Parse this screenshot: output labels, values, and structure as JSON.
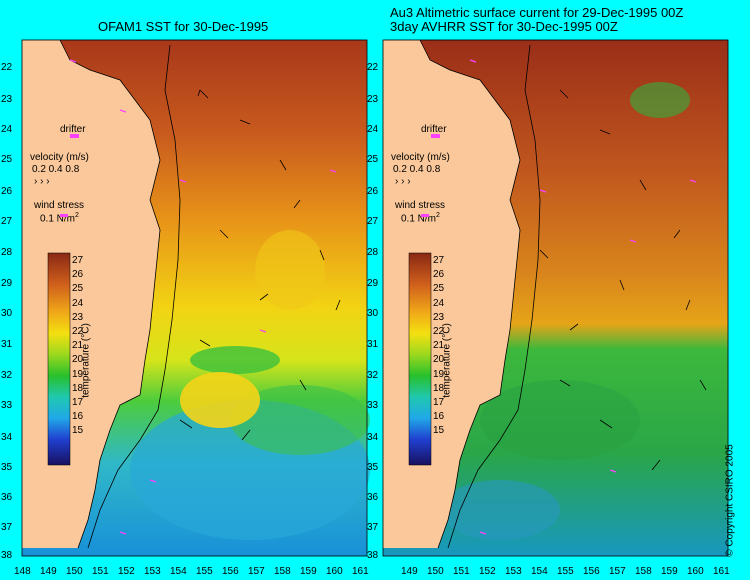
{
  "left_panel": {
    "title": "OFAM1 SST for 30-Dec-1995",
    "lat_ticks": [
      "22",
      "23",
      "24",
      "25",
      "26",
      "27",
      "28",
      "29",
      "30",
      "31",
      "32",
      "33",
      "34",
      "35",
      "36",
      "37",
      "38"
    ],
    "lon_ticks": [
      "148",
      "149",
      "150",
      "151",
      "152",
      "153",
      "154",
      "155",
      "156",
      "157",
      "158",
      "159",
      "160",
      "161"
    ]
  },
  "right_panel": {
    "title_line1": "Au3 Altimetric surface current for 29-Dec-1995 00Z",
    "title_line2": "3day AVHRR SST for 30-Dec-1995 00Z",
    "lat_ticks": [
      "22",
      "23",
      "24",
      "25",
      "26",
      "27",
      "28",
      "29",
      "30",
      "31",
      "32",
      "33",
      "34",
      "35",
      "36",
      "37",
      "38"
    ],
    "lon_ticks": [
      "149",
      "150",
      "151",
      "152",
      "153",
      "154",
      "155",
      "156",
      "157",
      "158",
      "159",
      "160",
      "161"
    ],
    "copyright": "© Copyright CSIRO 2005"
  },
  "legend": {
    "drifter_label": "drifter",
    "velocity_label": "velocity (m/s)",
    "velocity_values": "0.2 0.4 0.8",
    "wind_label": "wind stress",
    "wind_value": "0.1 N/m",
    "wind_sup": "2",
    "colorbar_label": "temperature (°C)",
    "colorbar_ticks": [
      "27",
      "26",
      "25",
      "24",
      "23",
      "22",
      "21",
      "20",
      "19",
      "18",
      "17",
      "16",
      "15"
    ]
  },
  "colors": {
    "land": "#fac89a",
    "frame": "#00ffff",
    "warm": "#b9461c",
    "mid_warm": "#e8a218",
    "yellow": "#f4e20e",
    "green": "#2ec82a",
    "cool": "#1ab0d8",
    "drifter": "#ff40ff"
  }
}
